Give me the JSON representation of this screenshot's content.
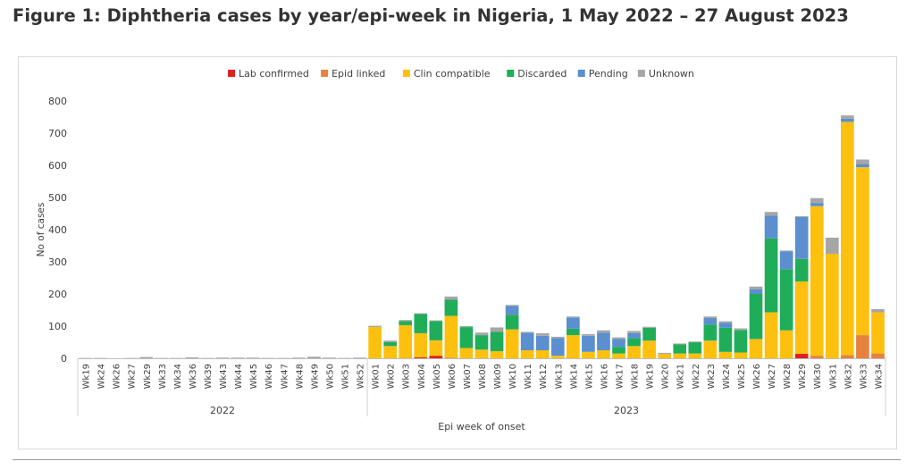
{
  "figure": {
    "title": "Figure 1: Diphtheria cases by year/epi-week in Nigeria, 1 May 2022 – 27 August 2023"
  },
  "chart_data": {
    "type": "bar",
    "stacked": true,
    "title": "",
    "xlabel": "Epi week of onset",
    "ylabel": "No of cases",
    "ylim": [
      0,
      800
    ],
    "yticks": [
      0,
      100,
      200,
      300,
      400,
      500,
      600,
      700,
      800
    ],
    "grid": false,
    "legend_position": "top-center",
    "categories": [
      "Wk19",
      "Wk24",
      "Wk26",
      "Wk27",
      "Wk29",
      "Wk33",
      "Wk34",
      "Wk36",
      "Wk39",
      "Wk43",
      "Wk44",
      "Wk45",
      "Wk46",
      "Wk47",
      "Wk48",
      "Wk49",
      "Wk50",
      "Wk51",
      "Wk52",
      "Wk01",
      "Wk02",
      "Wk03",
      "Wk04",
      "Wk05",
      "Wk06",
      "Wk07",
      "Wk08",
      "Wk09",
      "Wk10",
      "Wk11",
      "Wk12",
      "Wk13",
      "Wk14",
      "Wk15",
      "Wk16",
      "Wk17",
      "Wk18",
      "Wk19",
      "Wk20",
      "Wk21",
      "Wk22",
      "Wk23",
      "Wk24",
      "Wk25",
      "Wk26",
      "Wk27",
      "Wk28",
      "Wk29",
      "Wk30",
      "Wk31",
      "Wk32",
      "Wk33",
      "Wk34"
    ],
    "year_groups": [
      {
        "label": "2022",
        "count": 19
      },
      {
        "label": "2023",
        "count": 34
      }
    ],
    "series": [
      {
        "name": "Lab confirmed",
        "color": "#e0211d",
        "values": [
          0,
          0,
          0,
          0,
          0,
          0,
          0,
          0,
          0,
          0,
          0,
          0,
          0,
          0,
          0,
          0,
          0,
          0,
          0,
          0,
          0,
          0,
          3,
          8,
          0,
          0,
          0,
          0,
          0,
          0,
          0,
          0,
          0,
          0,
          0,
          0,
          0,
          0,
          0,
          0,
          0,
          0,
          0,
          0,
          0,
          0,
          0,
          14,
          0,
          0,
          0,
          0,
          0
        ]
      },
      {
        "name": "Epid linked",
        "color": "#e6813e",
        "values": [
          0,
          0,
          0,
          0,
          0,
          0,
          0,
          0,
          0,
          0,
          0,
          0,
          0,
          0,
          0,
          0,
          0,
          0,
          0,
          0,
          0,
          0,
          0,
          0,
          2,
          0,
          0,
          0,
          0,
          0,
          0,
          0,
          0,
          0,
          0,
          0,
          0,
          0,
          0,
          0,
          0,
          0,
          0,
          0,
          0,
          0,
          0,
          0,
          8,
          0,
          10,
          72,
          15
        ]
      },
      {
        "name": "Clin compatible",
        "color": "#fdc00f",
        "values": [
          0,
          0,
          0,
          0,
          0,
          0,
          0,
          0,
          0,
          0,
          0,
          0,
          0,
          0,
          0,
          0,
          0,
          0,
          0,
          97,
          38,
          103,
          75,
          48,
          130,
          32,
          27,
          22,
          90,
          25,
          25,
          8,
          72,
          20,
          25,
          15,
          38,
          55,
          13,
          15,
          15,
          55,
          20,
          18,
          60,
          143,
          87,
          225,
          465,
          325,
          725,
          522,
          128
        ]
      },
      {
        "name": "Discarded",
        "color": "#1fad5a",
        "values": [
          0,
          0,
          0,
          0,
          0,
          0,
          0,
          0,
          0,
          0,
          0,
          0,
          0,
          0,
          0,
          0,
          0,
          0,
          0,
          0,
          12,
          13,
          60,
          60,
          50,
          65,
          45,
          60,
          45,
          0,
          0,
          0,
          20,
          0,
          0,
          20,
          25,
          40,
          0,
          28,
          35,
          50,
          75,
          70,
          140,
          230,
          190,
          70,
          0,
          0,
          0,
          0,
          0
        ]
      },
      {
        "name": "Pending",
        "color": "#5b8fcf",
        "values": [
          0,
          0,
          0,
          0,
          0,
          0,
          0,
          0,
          0,
          0,
          0,
          0,
          0,
          0,
          0,
          0,
          0,
          0,
          0,
          0,
          0,
          0,
          0,
          0,
          0,
          0,
          0,
          0,
          28,
          55,
          45,
          55,
          35,
          50,
          55,
          25,
          15,
          0,
          0,
          0,
          0,
          20,
          15,
          0,
          15,
          70,
          55,
          130,
          10,
          0,
          10,
          10,
          0
        ]
      },
      {
        "name": "Unknown",
        "color": "#a6a6a6",
        "values": [
          1,
          1,
          0,
          1,
          4,
          1,
          1,
          3,
          1,
          2,
          2,
          2,
          1,
          1,
          2,
          5,
          2,
          1,
          2,
          4,
          5,
          3,
          2,
          2,
          10,
          3,
          8,
          14,
          3,
          2,
          8,
          4,
          3,
          5,
          7,
          5,
          7,
          3,
          4,
          3,
          2,
          5,
          5,
          5,
          8,
          12,
          3,
          3,
          15,
          50,
          10,
          14,
          10
        ]
      }
    ]
  }
}
